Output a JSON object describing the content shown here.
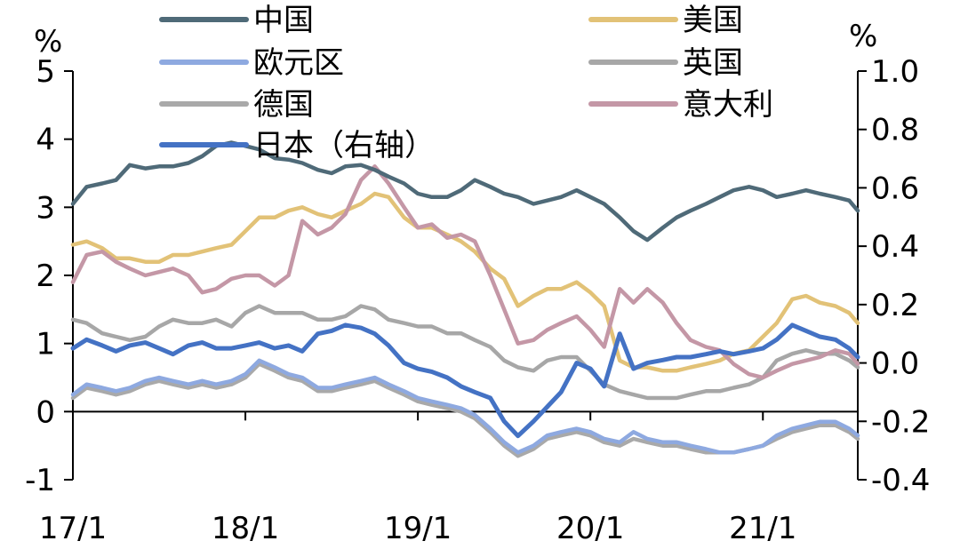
{
  "chart_data": {
    "type": "line",
    "y_unit_left": "%",
    "y_unit_right": "%",
    "ylim_left": [
      -1,
      5
    ],
    "ylim_right": [
      -0.4,
      1.0
    ],
    "yticks_left": [
      "5",
      "4",
      "3",
      "2",
      "1",
      "0",
      "-1"
    ],
    "yticks_right": [
      "1.0",
      "0.8",
      "0.6",
      "0.4",
      "0.2",
      "0.0",
      "-0.2",
      "-0.4"
    ],
    "x_ticks": [
      "17/1",
      "18/1",
      "19/1",
      "20/1",
      "21/1"
    ],
    "xlim": [
      2017.0,
      2021.55
    ],
    "series": [
      {
        "name": "中国",
        "axis": "left",
        "color": "#4f6a78",
        "x": [
          2017.0,
          2017.08,
          2017.17,
          2017.25,
          2017.33,
          2017.42,
          2017.5,
          2017.58,
          2017.67,
          2017.75,
          2017.83,
          2017.92,
          2018.0,
          2018.08,
          2018.17,
          2018.25,
          2018.33,
          2018.42,
          2018.5,
          2018.58,
          2018.67,
          2018.75,
          2018.83,
          2018.92,
          2019.0,
          2019.08,
          2019.17,
          2019.25,
          2019.33,
          2019.42,
          2019.5,
          2019.58,
          2019.67,
          2019.75,
          2019.83,
          2019.92,
          2020.0,
          2020.08,
          2020.17,
          2020.25,
          2020.33,
          2020.42,
          2020.5,
          2020.58,
          2020.67,
          2020.75,
          2020.83,
          2020.92,
          2021.0,
          2021.08,
          2021.17,
          2021.25,
          2021.33,
          2021.42,
          2021.5,
          2021.55
        ],
        "values": [
          3.05,
          3.3,
          3.35,
          3.4,
          3.62,
          3.57,
          3.6,
          3.6,
          3.65,
          3.75,
          3.9,
          3.95,
          3.9,
          3.85,
          3.72,
          3.7,
          3.65,
          3.55,
          3.5,
          3.6,
          3.62,
          3.55,
          3.45,
          3.35,
          3.2,
          3.15,
          3.15,
          3.25,
          3.4,
          3.3,
          3.2,
          3.15,
          3.05,
          3.1,
          3.15,
          3.25,
          3.15,
          3.05,
          2.85,
          2.65,
          2.52,
          2.7,
          2.85,
          2.95,
          3.05,
          3.15,
          3.25,
          3.3,
          3.25,
          3.15,
          3.2,
          3.25,
          3.2,
          3.15,
          3.1,
          2.95
        ]
      },
      {
        "name": "美国",
        "axis": "left",
        "color": "#e2c277",
        "x": [
          2017.0,
          2017.08,
          2017.17,
          2017.25,
          2017.33,
          2017.42,
          2017.5,
          2017.58,
          2017.67,
          2017.75,
          2017.83,
          2017.92,
          2018.0,
          2018.08,
          2018.17,
          2018.25,
          2018.33,
          2018.42,
          2018.5,
          2018.58,
          2018.67,
          2018.75,
          2018.83,
          2018.92,
          2019.0,
          2019.08,
          2019.17,
          2019.25,
          2019.33,
          2019.42,
          2019.5,
          2019.58,
          2019.67,
          2019.75,
          2019.83,
          2019.92,
          2020.0,
          2020.08,
          2020.17,
          2020.25,
          2020.33,
          2020.42,
          2020.5,
          2020.58,
          2020.67,
          2020.75,
          2020.83,
          2020.92,
          2021.0,
          2021.08,
          2021.17,
          2021.25,
          2021.33,
          2021.42,
          2021.5,
          2021.55
        ],
        "values": [
          2.45,
          2.5,
          2.4,
          2.25,
          2.25,
          2.2,
          2.2,
          2.3,
          2.3,
          2.35,
          2.4,
          2.45,
          2.65,
          2.85,
          2.85,
          2.95,
          3.0,
          2.9,
          2.85,
          2.95,
          3.05,
          3.2,
          3.15,
          2.85,
          2.7,
          2.7,
          2.6,
          2.5,
          2.35,
          2.1,
          1.95,
          1.55,
          1.7,
          1.8,
          1.8,
          1.9,
          1.75,
          1.55,
          0.75,
          0.65,
          0.65,
          0.6,
          0.6,
          0.65,
          0.7,
          0.75,
          0.85,
          0.9,
          1.1,
          1.3,
          1.65,
          1.7,
          1.6,
          1.55,
          1.45,
          1.3
        ]
      },
      {
        "name": "欧元区",
        "axis": "left",
        "color": "#8ea9e0",
        "x": [
          2017.0,
          2017.08,
          2017.17,
          2017.25,
          2017.33,
          2017.42,
          2017.5,
          2017.58,
          2017.67,
          2017.75,
          2017.83,
          2017.92,
          2018.0,
          2018.08,
          2018.17,
          2018.25,
          2018.33,
          2018.42,
          2018.5,
          2018.58,
          2018.67,
          2018.75,
          2018.83,
          2018.92,
          2019.0,
          2019.08,
          2019.17,
          2019.25,
          2019.33,
          2019.42,
          2019.5,
          2019.58,
          2019.67,
          2019.75,
          2019.83,
          2019.92,
          2020.0,
          2020.08,
          2020.17,
          2020.25,
          2020.33,
          2020.42,
          2020.5,
          2020.58,
          2020.67,
          2020.75,
          2020.83,
          2020.92,
          2021.0,
          2021.08,
          2021.17,
          2021.25,
          2021.33,
          2021.42,
          2021.5,
          2021.55
        ],
        "values": [
          0.25,
          0.4,
          0.35,
          0.3,
          0.35,
          0.45,
          0.5,
          0.45,
          0.4,
          0.45,
          0.4,
          0.45,
          0.55,
          0.75,
          0.65,
          0.55,
          0.5,
          0.35,
          0.35,
          0.4,
          0.45,
          0.5,
          0.4,
          0.3,
          0.2,
          0.15,
          0.1,
          0.05,
          -0.05,
          -0.25,
          -0.45,
          -0.6,
          -0.5,
          -0.35,
          -0.3,
          -0.25,
          -0.3,
          -0.4,
          -0.45,
          -0.3,
          -0.4,
          -0.45,
          -0.45,
          -0.5,
          -0.55,
          -0.6,
          -0.6,
          -0.55,
          -0.5,
          -0.35,
          -0.25,
          -0.2,
          -0.15,
          -0.15,
          -0.25,
          -0.35
        ]
      },
      {
        "name": "英国",
        "axis": "left",
        "color": "#a7a7a7",
        "x": [
          2017.0,
          2017.08,
          2017.17,
          2017.25,
          2017.33,
          2017.42,
          2017.5,
          2017.58,
          2017.67,
          2017.75,
          2017.83,
          2017.92,
          2018.0,
          2018.08,
          2018.17,
          2018.25,
          2018.33,
          2018.42,
          2018.5,
          2018.58,
          2018.67,
          2018.75,
          2018.83,
          2018.92,
          2019.0,
          2019.08,
          2019.17,
          2019.25,
          2019.33,
          2019.42,
          2019.5,
          2019.58,
          2019.67,
          2019.75,
          2019.83,
          2019.92,
          2020.0,
          2020.08,
          2020.17,
          2020.25,
          2020.33,
          2020.42,
          2020.5,
          2020.58,
          2020.67,
          2020.75,
          2020.83,
          2020.92,
          2021.0,
          2021.08,
          2021.17,
          2021.25,
          2021.33,
          2021.42,
          2021.5,
          2021.55
        ],
        "values": [
          1.35,
          1.3,
          1.15,
          1.1,
          1.05,
          1.1,
          1.25,
          1.35,
          1.3,
          1.3,
          1.35,
          1.25,
          1.45,
          1.55,
          1.45,
          1.45,
          1.45,
          1.35,
          1.35,
          1.4,
          1.55,
          1.5,
          1.35,
          1.3,
          1.25,
          1.25,
          1.15,
          1.15,
          1.05,
          0.95,
          0.75,
          0.65,
          0.6,
          0.75,
          0.8,
          0.8,
          0.6,
          0.4,
          0.3,
          0.25,
          0.2,
          0.2,
          0.2,
          0.25,
          0.3,
          0.3,
          0.35,
          0.4,
          0.5,
          0.75,
          0.85,
          0.9,
          0.85,
          0.85,
          0.75,
          0.65
        ]
      },
      {
        "name": "德国",
        "axis": "left",
        "color": "#a9a9a9",
        "x": [
          2017.0,
          2017.08,
          2017.17,
          2017.25,
          2017.33,
          2017.42,
          2017.5,
          2017.58,
          2017.67,
          2017.75,
          2017.83,
          2017.92,
          2018.0,
          2018.08,
          2018.17,
          2018.25,
          2018.33,
          2018.42,
          2018.5,
          2018.58,
          2018.67,
          2018.75,
          2018.83,
          2018.92,
          2019.0,
          2019.08,
          2019.17,
          2019.25,
          2019.33,
          2019.42,
          2019.5,
          2019.58,
          2019.67,
          2019.75,
          2019.83,
          2019.92,
          2020.0,
          2020.08,
          2020.17,
          2020.25,
          2020.33,
          2020.42,
          2020.5,
          2020.58,
          2020.67,
          2020.75,
          2020.83,
          2020.92,
          2021.0,
          2021.08,
          2021.17,
          2021.25,
          2021.33,
          2021.42,
          2021.5,
          2021.55
        ],
        "values": [
          0.2,
          0.35,
          0.3,
          0.25,
          0.3,
          0.4,
          0.45,
          0.4,
          0.35,
          0.4,
          0.35,
          0.4,
          0.5,
          0.7,
          0.6,
          0.5,
          0.45,
          0.3,
          0.3,
          0.35,
          0.4,
          0.45,
          0.35,
          0.25,
          0.15,
          0.1,
          0.05,
          0.0,
          -0.1,
          -0.3,
          -0.5,
          -0.65,
          -0.55,
          -0.4,
          -0.35,
          -0.3,
          -0.35,
          -0.45,
          -0.5,
          -0.4,
          -0.45,
          -0.5,
          -0.5,
          -0.55,
          -0.6,
          -0.6,
          -0.6,
          -0.55,
          -0.5,
          -0.4,
          -0.3,
          -0.25,
          -0.2,
          -0.2,
          -0.3,
          -0.4
        ]
      },
      {
        "name": "意大利",
        "axis": "left",
        "color": "#c497a6",
        "x": [
          2017.0,
          2017.08,
          2017.17,
          2017.25,
          2017.33,
          2017.42,
          2017.5,
          2017.58,
          2017.67,
          2017.75,
          2017.83,
          2017.92,
          2018.0,
          2018.08,
          2018.17,
          2018.25,
          2018.33,
          2018.42,
          2018.5,
          2018.58,
          2018.67,
          2018.75,
          2018.83,
          2018.92,
          2019.0,
          2019.08,
          2019.17,
          2019.25,
          2019.33,
          2019.42,
          2019.5,
          2019.58,
          2019.67,
          2019.75,
          2019.83,
          2019.92,
          2020.0,
          2020.08,
          2020.17,
          2020.25,
          2020.33,
          2020.42,
          2020.5,
          2020.58,
          2020.67,
          2020.75,
          2020.83,
          2020.92,
          2021.0,
          2021.08,
          2021.17,
          2021.25,
          2021.33,
          2021.42,
          2021.5,
          2021.55
        ],
        "values": [
          1.9,
          2.3,
          2.35,
          2.2,
          2.1,
          2.0,
          2.05,
          2.1,
          2.0,
          1.75,
          1.8,
          1.95,
          2.0,
          2.0,
          1.85,
          2.0,
          2.8,
          2.6,
          2.7,
          2.9,
          3.4,
          3.6,
          3.35,
          3.0,
          2.7,
          2.75,
          2.55,
          2.6,
          2.5,
          2.0,
          1.5,
          1.0,
          1.05,
          1.2,
          1.3,
          1.4,
          1.2,
          0.95,
          1.8,
          1.6,
          1.8,
          1.6,
          1.3,
          1.05,
          0.95,
          0.9,
          0.7,
          0.55,
          0.5,
          0.6,
          0.7,
          0.75,
          0.8,
          0.9,
          0.85,
          0.7
        ]
      },
      {
        "name": "日本（右轴）",
        "axis": "right",
        "color": "#4472c4",
        "x": [
          2017.0,
          2017.08,
          2017.17,
          2017.25,
          2017.33,
          2017.42,
          2017.5,
          2017.58,
          2017.67,
          2017.75,
          2017.83,
          2017.92,
          2018.0,
          2018.08,
          2018.17,
          2018.25,
          2018.33,
          2018.42,
          2018.5,
          2018.58,
          2018.67,
          2018.75,
          2018.83,
          2018.92,
          2019.0,
          2019.08,
          2019.17,
          2019.25,
          2019.33,
          2019.42,
          2019.5,
          2019.58,
          2019.67,
          2019.75,
          2019.83,
          2019.92,
          2020.0,
          2020.08,
          2020.17,
          2020.25,
          2020.33,
          2020.42,
          2020.5,
          2020.58,
          2020.67,
          2020.75,
          2020.83,
          2020.92,
          2021.0,
          2021.08,
          2021.17,
          2021.25,
          2021.33,
          2021.42,
          2021.5,
          2021.55
        ],
        "values": [
          0.05,
          0.08,
          0.06,
          0.04,
          0.06,
          0.07,
          0.05,
          0.03,
          0.06,
          0.07,
          0.05,
          0.05,
          0.06,
          0.07,
          0.05,
          0.06,
          0.04,
          0.1,
          0.11,
          0.13,
          0.12,
          0.1,
          0.06,
          0.0,
          -0.02,
          -0.03,
          -0.05,
          -0.08,
          -0.1,
          -0.12,
          -0.2,
          -0.25,
          -0.2,
          -0.15,
          -0.1,
          0.0,
          -0.02,
          -0.08,
          0.1,
          -0.02,
          0.0,
          0.01,
          0.02,
          0.02,
          0.03,
          0.04,
          0.03,
          0.04,
          0.05,
          0.08,
          0.13,
          0.11,
          0.09,
          0.08,
          0.05,
          0.02
        ]
      }
    ]
  }
}
